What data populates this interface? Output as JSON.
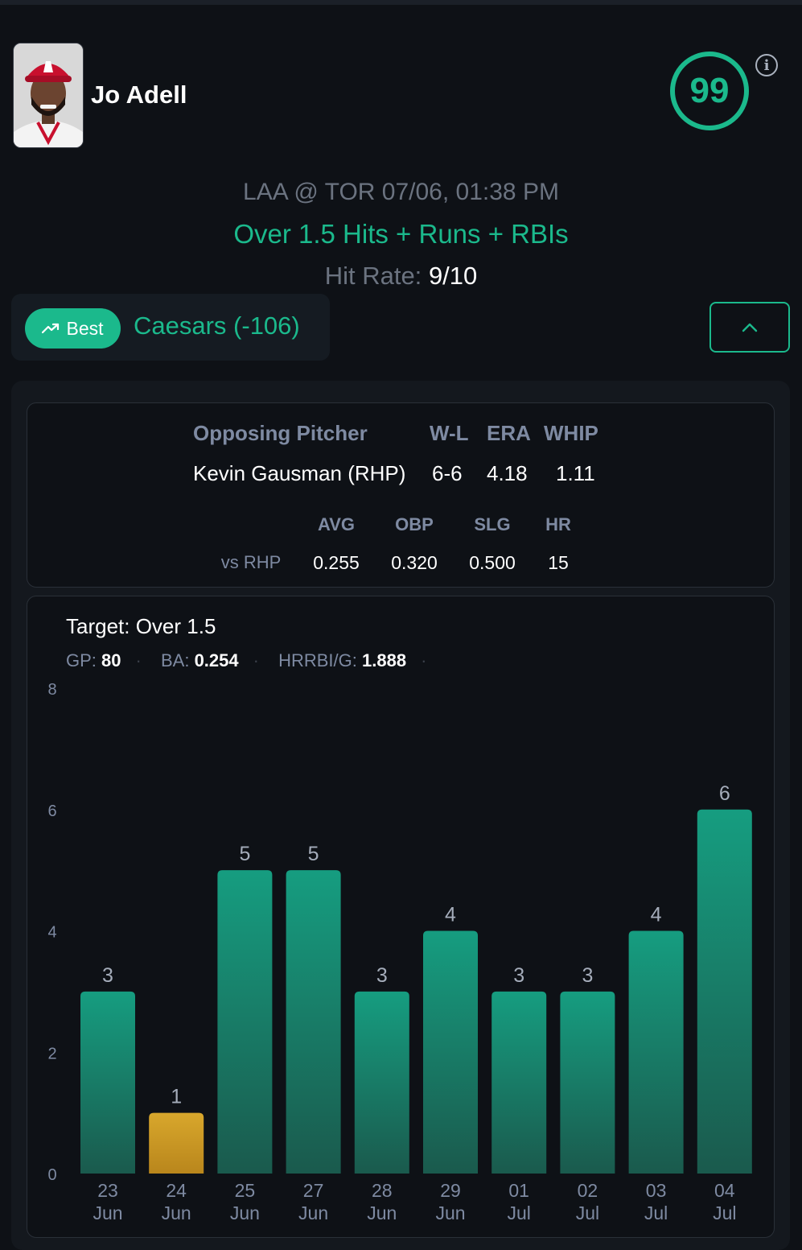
{
  "player": {
    "name": "Jo Adell",
    "score": "99"
  },
  "game": {
    "matchup": "LAA @ TOR 07/06, 01:38 PM",
    "prop": "Over 1.5 Hits + Runs + RBIs",
    "hit_rate_label": "Hit Rate:",
    "hit_rate_value": "9/10"
  },
  "book": {
    "badge": "Best",
    "name": "Caesars (-106)"
  },
  "pitcher": {
    "headers": {
      "name": "Opposing Pitcher",
      "wl": "W-L",
      "era": "ERA",
      "whip": "WHIP"
    },
    "values": {
      "name": "Kevin Gausman (RHP)",
      "wl": "6-6",
      "era": "4.18",
      "whip": "1.11"
    },
    "split_headers": {
      "avg": "AVG",
      "obp": "OBP",
      "slg": "SLG",
      "hr": "HR"
    },
    "split": {
      "label": "vs RHP",
      "avg": "0.255",
      "obp": "0.320",
      "slg": "0.500",
      "hr": "15"
    }
  },
  "summary": {
    "target": "Target: Over 1.5",
    "gp_label": "GP:",
    "gp": "80",
    "ba_label": "BA:",
    "ba": "0.254",
    "hrrbi_label": "HRRBI/G:",
    "hrrbi": "1.888"
  },
  "chart_data": {
    "type": "bar",
    "categories": [
      [
        "23",
        "Jun"
      ],
      [
        "24",
        "Jun"
      ],
      [
        "25",
        "Jun"
      ],
      [
        "27",
        "Jun"
      ],
      [
        "28",
        "Jun"
      ],
      [
        "29",
        "Jun"
      ],
      [
        "01",
        "Jul"
      ],
      [
        "02",
        "Jul"
      ],
      [
        "03",
        "Jul"
      ],
      [
        "04",
        "Jul"
      ]
    ],
    "values": [
      3,
      1,
      5,
      5,
      3,
      4,
      3,
      3,
      4,
      6
    ],
    "target_line": 1.5,
    "ylim": [
      0,
      8
    ],
    "yticks": [
      0,
      2,
      4,
      6,
      8
    ],
    "grid": false,
    "colors": {
      "over": "#1a9c80",
      "under": "#d6a52c"
    }
  }
}
